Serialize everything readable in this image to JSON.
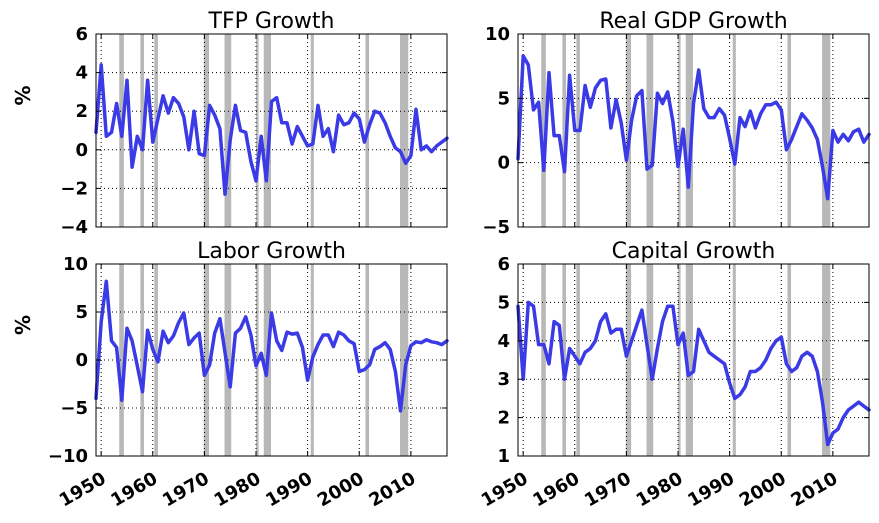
{
  "chart_data": [
    {
      "type": "line",
      "title": "TFP Growth",
      "ylabel": "%",
      "xlim": [
        1949,
        2017
      ],
      "ylim": [
        -4,
        6
      ],
      "yticks": [
        -4,
        -2,
        0,
        2,
        4,
        6
      ],
      "ytick_labels": [
        "−4",
        "−2",
        "0",
        "2",
        "4",
        "6"
      ],
      "xticks": [
        1950,
        1960,
        1970,
        1980,
        1990,
        2000,
        2010
      ],
      "xtick_labels": [],
      "grid": true,
      "series": [
        {
          "color": "#3a3ae6",
          "x": [
            1949,
            1950,
            1951,
            1952,
            1953,
            1954,
            1955,
            1956,
            1957,
            1958,
            1959,
            1960,
            1961,
            1962,
            1963,
            1964,
            1965,
            1966,
            1967,
            1968,
            1969,
            1970,
            1971,
            1972,
            1973,
            1974,
            1975,
            1976,
            1977,
            1978,
            1979,
            1980,
            1981,
            1982,
            1983,
            1984,
            1985,
            1986,
            1987,
            1988,
            1989,
            1990,
            1991,
            1992,
            1993,
            1994,
            1995,
            1996,
            1997,
            1998,
            1999,
            2000,
            2001,
            2002,
            2003,
            2004,
            2005,
            2006,
            2007,
            2008,
            2009,
            2010,
            2011,
            2012,
            2013,
            2014,
            2015,
            2016,
            2017
          ],
          "values": [
            0.9,
            4.4,
            0.7,
            0.9,
            2.4,
            0.7,
            3.6,
            -0.9,
            0.7,
            0.0,
            3.6,
            0.4,
            1.6,
            2.8,
            1.9,
            2.7,
            2.4,
            1.7,
            0.0,
            2.0,
            -0.2,
            -0.3,
            2.3,
            1.8,
            1.1,
            -2.3,
            0.5,
            2.3,
            1.0,
            0.9,
            -0.6,
            -1.6,
            0.7,
            -1.6,
            2.5,
            2.7,
            1.4,
            1.4,
            0.3,
            1.2,
            0.7,
            0.2,
            0.3,
            2.3,
            0.7,
            1.1,
            -0.1,
            1.8,
            1.3,
            1.4,
            1.9,
            1.6,
            0.4,
            1.3,
            2.0,
            1.9,
            1.4,
            0.7,
            0.1,
            -0.1,
            -0.7,
            -0.3,
            2.1,
            0.0,
            0.2,
            -0.1,
            0.2,
            0.4,
            0.6
          ]
        }
      ]
    },
    {
      "type": "line",
      "title": "Real GDP Growth",
      "ylabel": "",
      "xlim": [
        1949,
        2017
      ],
      "ylim": [
        -5,
        10
      ],
      "yticks": [
        -5,
        0,
        5,
        10
      ],
      "ytick_labels": [
        "−5",
        "0",
        "5",
        "10"
      ],
      "xticks": [
        1950,
        1960,
        1970,
        1980,
        1990,
        2000,
        2010
      ],
      "xtick_labels": [],
      "grid": true,
      "series": [
        {
          "color": "#3a3ae6",
          "x": [
            1949,
            1950,
            1951,
            1952,
            1953,
            1954,
            1955,
            1956,
            1957,
            1958,
            1959,
            1960,
            1961,
            1962,
            1963,
            1964,
            1965,
            1966,
            1967,
            1968,
            1969,
            1970,
            1971,
            1972,
            1973,
            1974,
            1975,
            1976,
            1977,
            1978,
            1979,
            1980,
            1981,
            1982,
            1983,
            1984,
            1985,
            1986,
            1987,
            1988,
            1989,
            1990,
            1991,
            1992,
            1993,
            1994,
            1995,
            1996,
            1997,
            1998,
            1999,
            2000,
            2001,
            2002,
            2003,
            2004,
            2005,
            2006,
            2007,
            2008,
            2009,
            2010,
            2011,
            2012,
            2013,
            2014,
            2015,
            2016,
            2017
          ],
          "values": [
            0.3,
            8.3,
            7.6,
            4.1,
            4.7,
            -0.6,
            7.0,
            2.1,
            2.1,
            -0.7,
            6.8,
            2.5,
            2.5,
            6.0,
            4.3,
            5.8,
            6.4,
            6.5,
            2.7,
            4.9,
            3.1,
            0.2,
            3.3,
            5.2,
            5.6,
            -0.5,
            -0.2,
            5.4,
            4.6,
            5.5,
            3.2,
            -0.3,
            2.6,
            -1.9,
            4.6,
            7.2,
            4.2,
            3.5,
            3.5,
            4.2,
            3.7,
            1.9,
            -0.1,
            3.5,
            2.8,
            4.0,
            2.7,
            3.8,
            4.5,
            4.5,
            4.7,
            4.1,
            1.0,
            1.8,
            2.8,
            3.8,
            3.3,
            2.7,
            1.8,
            -0.3,
            -2.8,
            2.5,
            1.6,
            2.2,
            1.7,
            2.4,
            2.6,
            1.6,
            2.2
          ]
        }
      ]
    },
    {
      "type": "line",
      "title": "Labor Growth",
      "ylabel": "%",
      "xlim": [
        1949,
        2017
      ],
      "ylim": [
        -10,
        10
      ],
      "yticks": [
        -10,
        -5,
        0,
        5,
        10
      ],
      "ytick_labels": [
        "−10",
        "−5",
        "0",
        "5",
        "10"
      ],
      "xticks": [
        1950,
        1960,
        1970,
        1980,
        1990,
        2000,
        2010
      ],
      "xtick_labels": [
        "1950",
        "1960",
        "1970",
        "1980",
        "1990",
        "2000",
        "2010"
      ],
      "grid": true,
      "series": [
        {
          "color": "#3a3ae6",
          "x": [
            1949,
            1950,
            1951,
            1952,
            1953,
            1954,
            1955,
            1956,
            1957,
            1958,
            1959,
            1960,
            1961,
            1962,
            1963,
            1964,
            1965,
            1966,
            1967,
            1968,
            1969,
            1970,
            1971,
            1972,
            1973,
            1974,
            1975,
            1976,
            1977,
            1978,
            1979,
            1980,
            1981,
            1982,
            1983,
            1984,
            1985,
            1986,
            1987,
            1988,
            1989,
            1990,
            1991,
            1992,
            1993,
            1994,
            1995,
            1996,
            1997,
            1998,
            1999,
            2000,
            2001,
            2002,
            2003,
            2004,
            2005,
            2006,
            2007,
            2008,
            2009,
            2010,
            2011,
            2012,
            2013,
            2014,
            2015,
            2016,
            2017
          ],
          "values": [
            -4.0,
            4.0,
            8.2,
            2.0,
            1.3,
            -4.2,
            3.3,
            2.0,
            -0.6,
            -3.3,
            3.1,
            1.1,
            -0.2,
            3.0,
            1.8,
            2.5,
            3.9,
            4.9,
            1.6,
            2.3,
            2.8,
            -1.6,
            -0.5,
            2.8,
            4.3,
            0.8,
            -2.8,
            2.8,
            3.3,
            4.5,
            2.6,
            -0.6,
            0.7,
            -1.6,
            4.9,
            2.0,
            1.0,
            2.9,
            2.7,
            2.8,
            1.3,
            -2.1,
            0.3,
            1.6,
            2.6,
            2.6,
            1.4,
            2.9,
            2.6,
            2.0,
            1.7,
            -1.2,
            -1.0,
            -0.5,
            1.1,
            1.4,
            1.8,
            1.1,
            -1.2,
            -5.3,
            -0.5,
            1.5,
            1.9,
            1.8,
            2.1,
            1.9,
            1.8,
            1.6,
            2.0
          ]
        }
      ]
    },
    {
      "type": "line",
      "title": "Capital Growth",
      "ylabel": "",
      "xlim": [
        1949,
        2017
      ],
      "ylim": [
        1,
        6
      ],
      "yticks": [
        1,
        2,
        3,
        4,
        5,
        6
      ],
      "ytick_labels": [
        "1",
        "2",
        "3",
        "4",
        "5",
        "6"
      ],
      "xticks": [
        1950,
        1960,
        1970,
        1980,
        1990,
        2000,
        2010
      ],
      "xtick_labels": [
        "1950",
        "1960",
        "1970",
        "1980",
        "1990",
        "2000",
        "2010"
      ],
      "grid": true,
      "series": [
        {
          "color": "#3a3ae6",
          "x": [
            1949,
            1950,
            1951,
            1952,
            1953,
            1954,
            1955,
            1956,
            1957,
            1958,
            1959,
            1960,
            1961,
            1962,
            1963,
            1964,
            1965,
            1966,
            1967,
            1968,
            1969,
            1970,
            1971,
            1972,
            1973,
            1974,
            1975,
            1976,
            1977,
            1978,
            1979,
            1980,
            1981,
            1982,
            1983,
            1984,
            1985,
            1986,
            1987,
            1988,
            1989,
            1990,
            1991,
            1992,
            1993,
            1994,
            1995,
            1996,
            1997,
            1998,
            1999,
            2000,
            2001,
            2002,
            2003,
            2004,
            2005,
            2006,
            2007,
            2008,
            2009,
            2010,
            2011,
            2012,
            2013,
            2014,
            2015,
            2016,
            2017
          ],
          "values": [
            4.9,
            3.0,
            5.0,
            4.9,
            3.9,
            3.9,
            3.4,
            4.5,
            4.4,
            3.0,
            3.8,
            3.6,
            3.4,
            3.7,
            3.8,
            4.0,
            4.5,
            4.7,
            4.2,
            4.3,
            4.3,
            3.6,
            4.0,
            4.4,
            4.8,
            3.9,
            3.0,
            3.8,
            4.5,
            4.9,
            4.9,
            3.9,
            4.2,
            3.1,
            3.2,
            4.3,
            4.0,
            3.7,
            3.6,
            3.5,
            3.4,
            2.9,
            2.5,
            2.6,
            2.8,
            3.2,
            3.2,
            3.3,
            3.5,
            3.8,
            4.0,
            4.1,
            3.4,
            3.2,
            3.3,
            3.6,
            3.7,
            3.6,
            3.2,
            2.4,
            1.3,
            1.6,
            1.7,
            2.0,
            2.2,
            2.3,
            2.4,
            2.3,
            2.2
          ]
        }
      ]
    }
  ],
  "recessions": [
    [
      1953.5,
      1954.4
    ],
    [
      1957.6,
      1958.3
    ],
    [
      1960.3,
      1961.0
    ],
    [
      1969.9,
      1970.9
    ],
    [
      1973.9,
      1975.2
    ],
    [
      1980.0,
      1980.5
    ],
    [
      1981.5,
      1982.9
    ],
    [
      1990.6,
      1991.2
    ],
    [
      2001.2,
      2001.9
    ],
    [
      2007.9,
      2009.5
    ]
  ],
  "colors": {
    "line": "#3a3ae6",
    "recession": "#b8b8b8",
    "grid": "#000000",
    "axis": "#000000"
  }
}
